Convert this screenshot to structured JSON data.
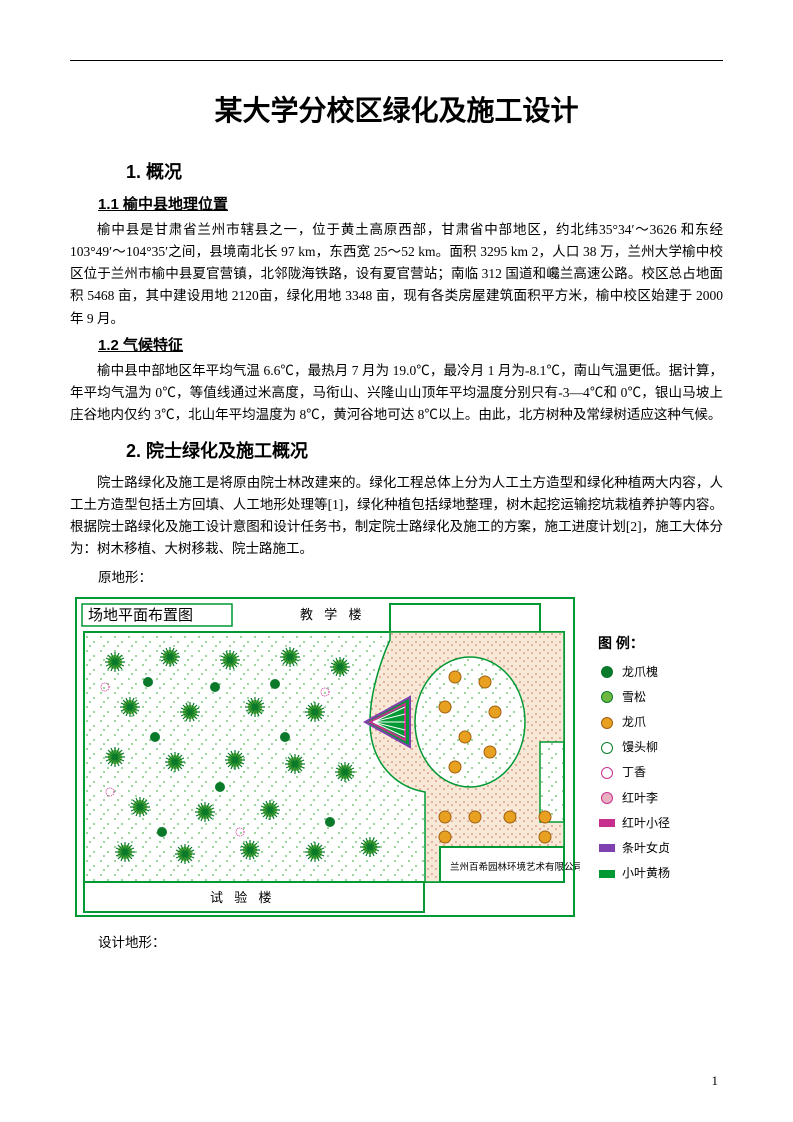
{
  "title": "某大学分校区绿化及施工设计",
  "section1": {
    "heading": "1. 概况",
    "sub1": {
      "heading": "1.1 榆中县地理位置",
      "p1": "榆中县是甘肃省兰州市辖县之一，位于黄土高原西部，甘肃省中部地区，约北纬35°34′～3626 和东经 103°49′～104°35′之间，县境南北长 97 km，东西宽 25～52 km。面积 3295 km 2，人口 38 万，兰州大学榆中校区位于兰州市榆中县夏官营镇，北邻陇海铁路，设有夏官营站；南临 312 国道和巉兰高速公路。校区总占地面积 5468 亩，其中建设用地 2120亩，绿化用地 3348 亩，现有各类房屋建筑面积平方米，榆中校区始建于 2000 年 9 月。"
    },
    "sub2": {
      "heading": "1.2 气候特征",
      "p1": "榆中县中部地区年平均气温 6.6℃，最热月 7 月为 19.0℃，最冷月 1 月为-8.1℃，南山气温更低。据计算，年平均气温为 0℃，等值线通过米高度，马衔山、兴隆山山顶年平均温度分别只有-3—4℃和 0℃，银山马坡上庄谷地内仅约 3℃，北山年平均温度为 8℃，黄河谷地可达 8℃以上。由此，北方树种及常绿树适应这种气候。"
    }
  },
  "section2": {
    "heading": "2. 院士绿化及施工概况",
    "p1": "院士路绿化及施工是将原由院士林改建来的。绿化工程总体上分为人工土方造型和绿化种植两大内容，人工土方造型包括土方回填、人工地形处理等[1]，绿化种植包括绿地整理，树木起挖运输挖坑栽植养护等内容。根据院士路绿化及施工设计意图和设计任务书，制定院士路绿化及施工的方案，施工进度计划[2]，施工大体分为：树木移植、大树移栽、院士路施工。",
    "caption_before": "原地形：",
    "caption_after": "设计地形："
  },
  "diagram": {
    "title_box": "场地平面布置图",
    "top_label": "教 学 楼",
    "bottom_label": "试 验 楼",
    "credit": "兰州百希园林环境艺术有限公司",
    "colors": {
      "frame": "#009933",
      "path_fill": "#f8e8d8",
      "path_dots": "#d07050",
      "lawn_bg": "#ffffff",
      "lawn_dots": "#7fc87f",
      "tree_dk_green": "#0a7a2a",
      "tree_lt_green": "#6fb83f",
      "tree_yellow": "#e8a020",
      "tree_pink": "#e8b0c0",
      "accent_magenta": "#c83090",
      "accent_purple": "#8040b0",
      "accent_green": "#009933"
    },
    "legend_title": "图 例：",
    "legend": [
      {
        "type": "circle",
        "fill": "#0a7a2a",
        "stroke": "#0a7a2a",
        "label": "龙爪槐"
      },
      {
        "type": "circle",
        "fill": "#6fb83f",
        "stroke": "#0a7a2a",
        "label": "雪松"
      },
      {
        "type": "circle",
        "fill": "#e8a020",
        "stroke": "#a06010",
        "label": "龙爪"
      },
      {
        "type": "circle",
        "fill": "#ffffff",
        "stroke": "#0a7a2a",
        "label": "馒头柳"
      },
      {
        "type": "circle",
        "fill": "#ffffff",
        "stroke": "#c83090",
        "label": "丁香"
      },
      {
        "type": "circle",
        "fill": "#e8b0c0",
        "stroke": "#c83090",
        "label": "红叶李"
      },
      {
        "type": "rect",
        "fill": "#c83090",
        "stroke": "#c83090",
        "label": "红叶小径"
      },
      {
        "type": "rect",
        "fill": "#8040b0",
        "stroke": "#8040b0",
        "label": "条叶女贞"
      },
      {
        "type": "rect",
        "fill": "#009933",
        "stroke": "#009933",
        "label": "小叶黄杨"
      }
    ]
  },
  "page_number": "1"
}
